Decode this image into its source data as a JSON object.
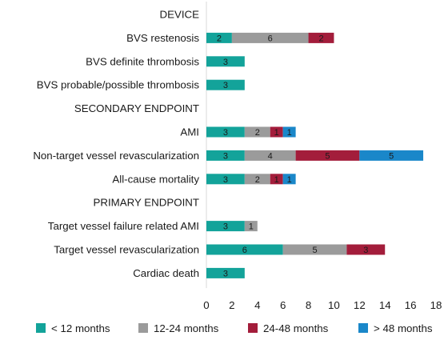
{
  "chart_data": {
    "type": "bar",
    "orientation": "horizontal",
    "stacked": true,
    "categories": [
      "DEVICE",
      "BVS restenosis",
      "BVS definite thrombosis",
      "BVS probable/possible thrombosis",
      "SECONDARY ENDPOINT",
      "AMI",
      "Non-target vessel revascularization",
      "All-cause mortality",
      "PRIMARY ENDPOINT",
      "Target vessel failure related AMI",
      "Target vessel revascularization",
      "Cardiac death"
    ],
    "series": [
      {
        "name": "< 12 months",
        "color": "#13a39a",
        "values": [
          0,
          2,
          3,
          3,
          0,
          3,
          3,
          3,
          0,
          3,
          6,
          3
        ]
      },
      {
        "name": "12-24 months",
        "color": "#9b9b9b",
        "values": [
          0,
          6,
          0,
          0,
          0,
          2,
          4,
          2,
          0,
          1,
          5,
          0
        ]
      },
      {
        "name": "24-48 months",
        "color": "#a31d3b",
        "values": [
          0,
          2,
          0,
          0,
          0,
          1,
          5,
          1,
          0,
          0,
          3,
          0
        ]
      },
      {
        "name": "> 48 months",
        "color": "#1a87c9",
        "values": [
          0,
          0,
          0,
          0,
          0,
          1,
          5,
          1,
          0,
          0,
          0,
          0
        ]
      }
    ],
    "xticks": [
      0,
      2,
      4,
      6,
      8,
      10,
      12,
      14,
      16,
      18
    ],
    "xlim": [
      0,
      18
    ],
    "title": "",
    "xlabel": "",
    "ylabel": "",
    "grid": false,
    "legend_position": "bottom"
  }
}
